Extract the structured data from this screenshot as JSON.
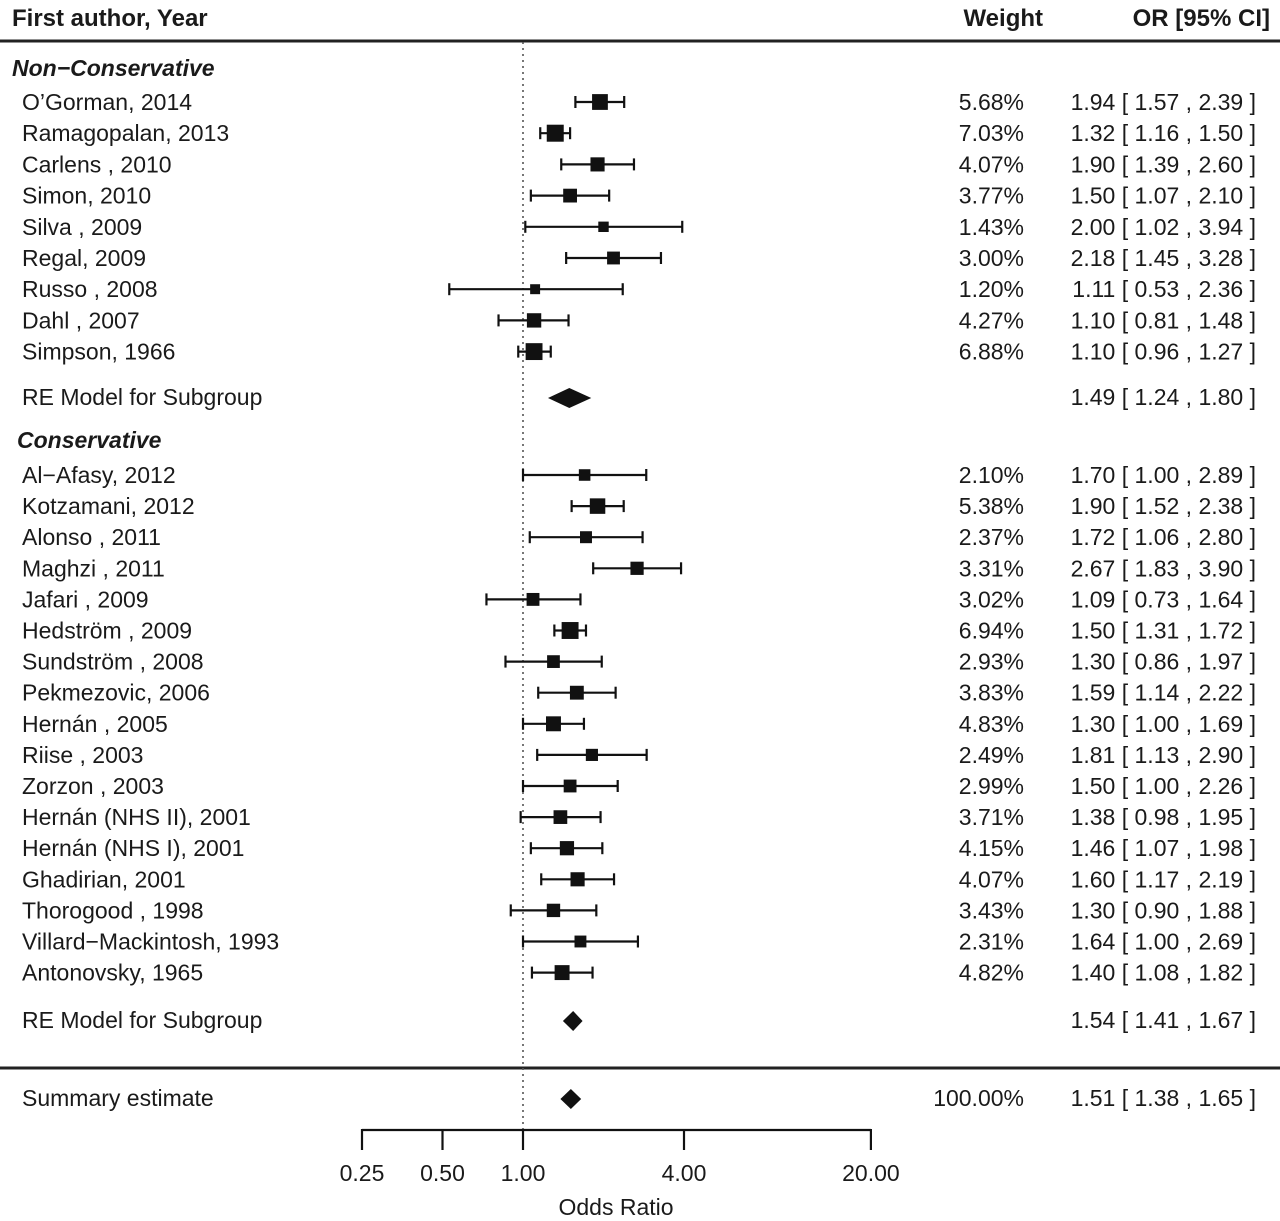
{
  "chart_data": {
    "type": "forest",
    "title": "",
    "xlabel": "Odds Ratio",
    "ylabel": "",
    "x_scale": "log",
    "xlim": [
      0.25,
      20
    ],
    "x_ticks": [
      0.25,
      0.5,
      1,
      4,
      20
    ],
    "x_tick_labels": [
      "0.25",
      "0.50",
      "1.00",
      "4.00",
      "20.00"
    ],
    "reference_line": 1,
    "headers": {
      "study": "First author, Year",
      "weight": "Weight",
      "estimate": "OR [95% CI]"
    },
    "groups": [
      {
        "name": "Non−Conservative",
        "studies": [
          {
            "label": "O’Gorman, 2014",
            "weight": "5.68%",
            "or": 1.94,
            "lo": 1.57,
            "hi": 2.39,
            "text": "1.94 [ 1.57 , 2.39 ]"
          },
          {
            "label": "Ramagopalan, 2013",
            "weight": "7.03%",
            "or": 1.32,
            "lo": 1.16,
            "hi": 1.5,
            "text": "1.32 [ 1.16 , 1.50 ]"
          },
          {
            "label": "Carlens , 2010",
            "weight": "4.07%",
            "or": 1.9,
            "lo": 1.39,
            "hi": 2.6,
            "text": "1.90 [ 1.39 , 2.60 ]"
          },
          {
            "label": "Simon, 2010",
            "weight": "3.77%",
            "or": 1.5,
            "lo": 1.07,
            "hi": 2.1,
            "text": "1.50 [ 1.07 , 2.10 ]"
          },
          {
            "label": "Silva , 2009",
            "weight": "1.43%",
            "or": 2.0,
            "lo": 1.02,
            "hi": 3.94,
            "text": "2.00 [ 1.02 , 3.94 ]"
          },
          {
            "label": "Regal, 2009",
            "weight": "3.00%",
            "or": 2.18,
            "lo": 1.45,
            "hi": 3.28,
            "text": "2.18 [ 1.45 , 3.28 ]"
          },
          {
            "label": "Russo , 2008",
            "weight": "1.20%",
            "or": 1.11,
            "lo": 0.53,
            "hi": 2.36,
            "text": "1.11 [ 0.53 , 2.36 ]"
          },
          {
            "label": "Dahl , 2007",
            "weight": "4.27%",
            "or": 1.1,
            "lo": 0.81,
            "hi": 1.48,
            "text": "1.10 [ 0.81 , 1.48 ]"
          },
          {
            "label": "Simpson, 1966",
            "weight": "6.88%",
            "or": 1.1,
            "lo": 0.96,
            "hi": 1.27,
            "text": "1.10 [ 0.96 , 1.27 ]"
          }
        ],
        "subtotal": {
          "label": "RE Model for Subgroup",
          "or": 1.49,
          "lo": 1.24,
          "hi": 1.8,
          "text": "1.49 [ 1.24 , 1.80 ]"
        }
      },
      {
        "name": "Conservative",
        "studies": [
          {
            "label": "Al−Afasy, 2012",
            "weight": "2.10%",
            "or": 1.7,
            "lo": 1.0,
            "hi": 2.89,
            "text": "1.70 [ 1.00 , 2.89 ]"
          },
          {
            "label": "Kotzamani, 2012",
            "weight": "5.38%",
            "or": 1.9,
            "lo": 1.52,
            "hi": 2.38,
            "text": "1.90 [ 1.52 , 2.38 ]"
          },
          {
            "label": "Alonso , 2011",
            "weight": "2.37%",
            "or": 1.72,
            "lo": 1.06,
            "hi": 2.8,
            "text": "1.72 [ 1.06 , 2.80 ]"
          },
          {
            "label": "Maghzi , 2011",
            "weight": "3.31%",
            "or": 2.67,
            "lo": 1.83,
            "hi": 3.9,
            "text": "2.67 [ 1.83 , 3.90 ]"
          },
          {
            "label": "Jafari , 2009",
            "weight": "3.02%",
            "or": 1.09,
            "lo": 0.73,
            "hi": 1.64,
            "text": "1.09 [ 0.73 , 1.64 ]"
          },
          {
            "label": "Hedström , 2009",
            "weight": "6.94%",
            "or": 1.5,
            "lo": 1.31,
            "hi": 1.72,
            "text": "1.50 [ 1.31 , 1.72 ]"
          },
          {
            "label": "Sundström , 2008",
            "weight": "2.93%",
            "or": 1.3,
            "lo": 0.86,
            "hi": 1.97,
            "text": "1.30 [ 0.86 , 1.97 ]"
          },
          {
            "label": "Pekmezovic, 2006",
            "weight": "3.83%",
            "or": 1.59,
            "lo": 1.14,
            "hi": 2.22,
            "text": "1.59 [ 1.14 , 2.22 ]"
          },
          {
            "label": "Hernán , 2005",
            "weight": "4.83%",
            "or": 1.3,
            "lo": 1.0,
            "hi": 1.69,
            "text": "1.30 [ 1.00 , 1.69 ]"
          },
          {
            "label": "Riise , 2003",
            "weight": "2.49%",
            "or": 1.81,
            "lo": 1.13,
            "hi": 2.9,
            "text": "1.81 [ 1.13 , 2.90 ]"
          },
          {
            "label": "Zorzon , 2003",
            "weight": "2.99%",
            "or": 1.5,
            "lo": 1.0,
            "hi": 2.26,
            "text": "1.50 [ 1.00 , 2.26 ]"
          },
          {
            "label": "Hernán (NHS II), 2001",
            "weight": "3.71%",
            "or": 1.38,
            "lo": 0.98,
            "hi": 1.95,
            "text": "1.38 [ 0.98 , 1.95 ]"
          },
          {
            "label": "Hernán (NHS I), 2001",
            "weight": "4.15%",
            "or": 1.46,
            "lo": 1.07,
            "hi": 1.98,
            "text": "1.46 [ 1.07 , 1.98 ]"
          },
          {
            "label": "Ghadirian, 2001",
            "weight": "4.07%",
            "or": 1.6,
            "lo": 1.17,
            "hi": 2.19,
            "text": "1.60 [ 1.17 , 2.19 ]"
          },
          {
            "label": "Thorogood , 1998",
            "weight": "3.43%",
            "or": 1.3,
            "lo": 0.9,
            "hi": 1.88,
            "text": "1.30 [ 0.90 , 1.88 ]"
          },
          {
            "label": "Villard−Mackintosh, 1993",
            "weight": "2.31%",
            "or": 1.64,
            "lo": 1.0,
            "hi": 2.69,
            "text": "1.64 [ 1.00 , 2.69 ]"
          },
          {
            "label": "Antonovsky, 1965",
            "weight": "4.82%",
            "or": 1.4,
            "lo": 1.08,
            "hi": 1.82,
            "text": "1.40 [ 1.08 , 1.82 ]"
          }
        ],
        "subtotal": {
          "label": "RE Model for Subgroup",
          "or": 1.54,
          "lo": 1.41,
          "hi": 1.67,
          "text": "1.54 [ 1.41 , 1.67 ]"
        }
      }
    ],
    "overall": {
      "label": "Summary estimate",
      "weight": "100.00%",
      "or": 1.51,
      "lo": 1.38,
      "hi": 1.65,
      "text": "1.51 [ 1.38 , 1.65 ]"
    },
    "colors": {
      "ink": "#111111",
      "reference_line": "#555555"
    }
  }
}
